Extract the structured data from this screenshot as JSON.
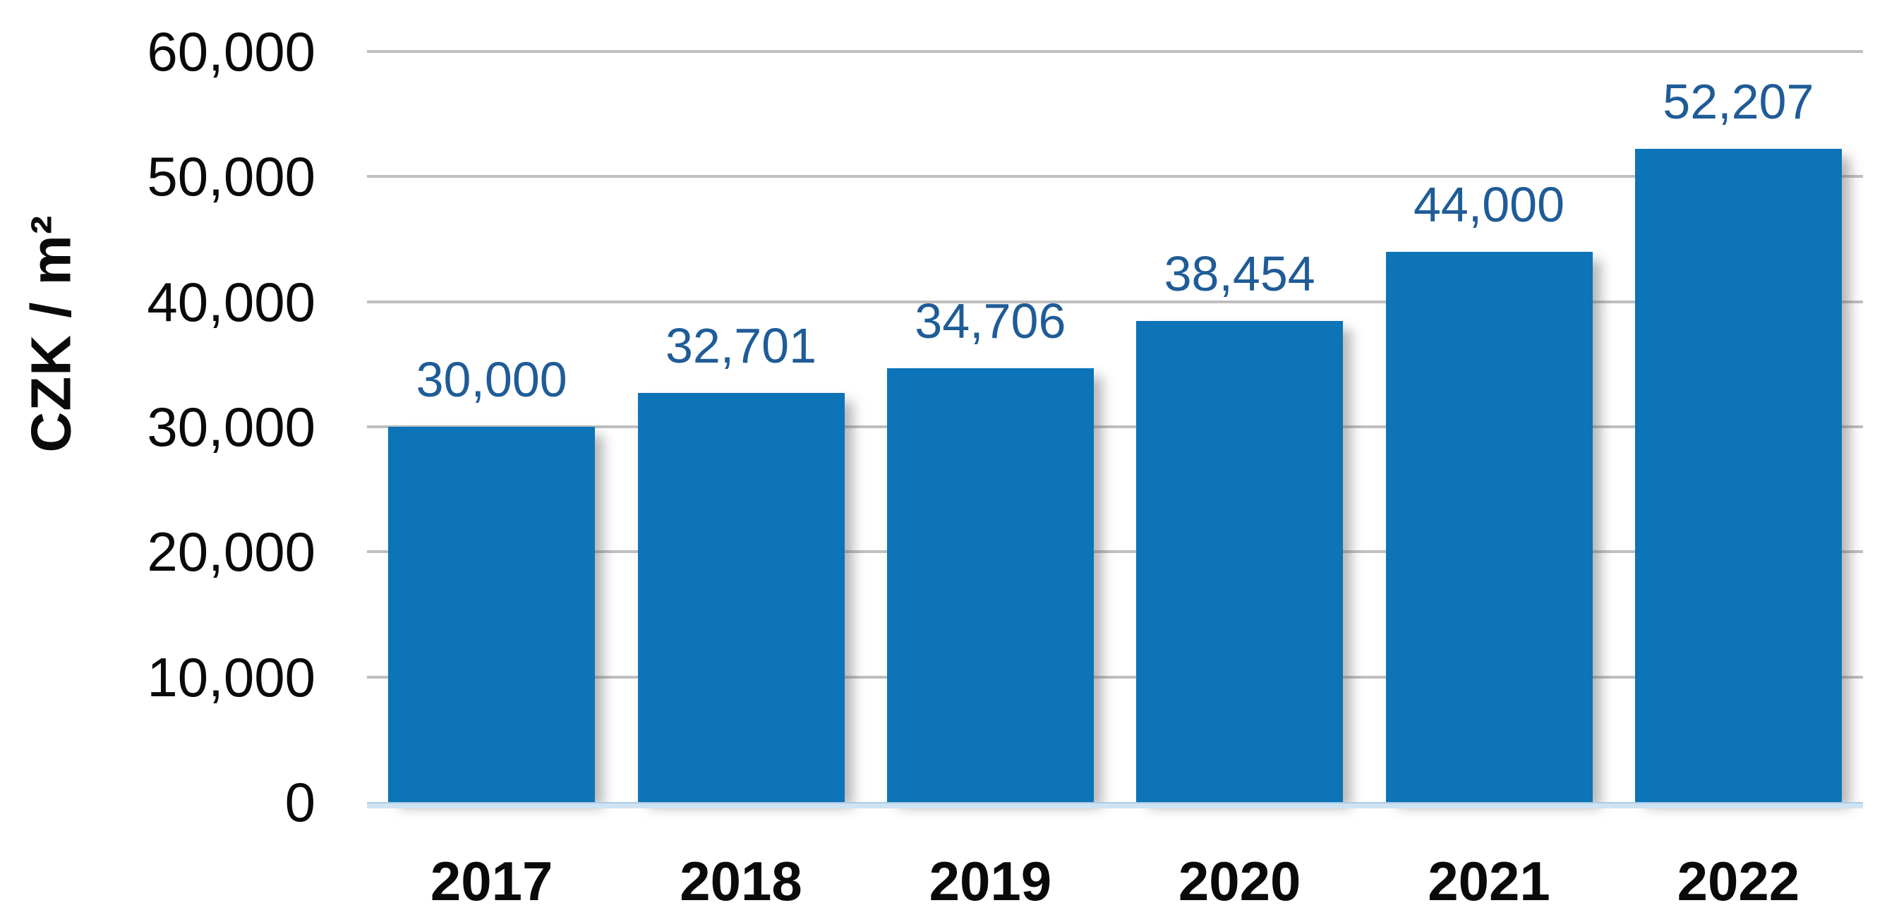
{
  "chart_data": {
    "type": "bar",
    "title": "",
    "ylabel": "CZK / m²",
    "xlabel": "",
    "categories": [
      "2017",
      "2018",
      "2019",
      "2020",
      "2021",
      "2022"
    ],
    "values": [
      30000,
      32701,
      34706,
      38454,
      44000,
      52207
    ],
    "value_labels": [
      "30,000",
      "32,701",
      "34,706",
      "38,454",
      "44,000",
      "52,207"
    ],
    "ylim": [
      0,
      60000
    ],
    "ytick_interval": 10000,
    "ytick_labels": [
      "0",
      "10,000",
      "20,000",
      "30,000",
      "40,000",
      "50,000",
      "60,000"
    ],
    "grid": "horizontal",
    "legend": "none",
    "colors": {
      "bar": "#0d74b8",
      "value_label": "#1f5c97",
      "axis_text": "#0a0a0a",
      "gridline": "#bfbfbf",
      "baseline_band": "#cfe3f3"
    }
  }
}
